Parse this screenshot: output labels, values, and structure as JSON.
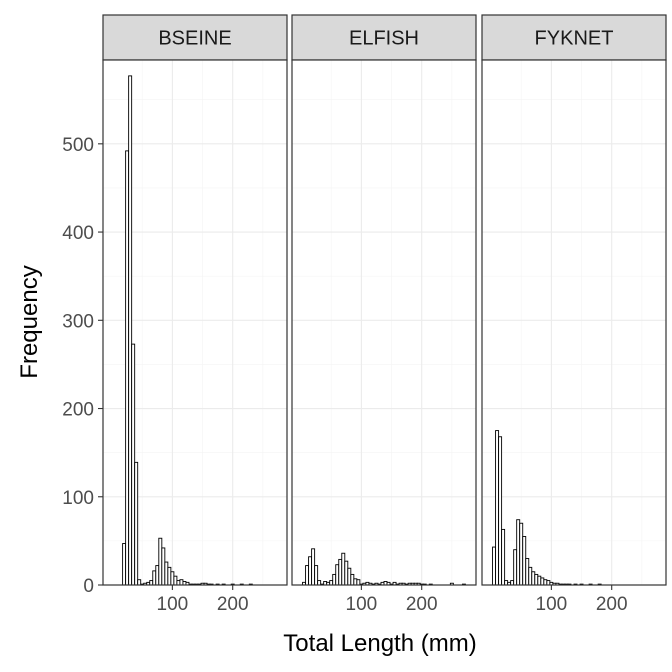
{
  "chart_data": {
    "type": "bar",
    "xlabel": "Total Length (mm)",
    "ylabel": "Frequency",
    "xlim": [
      -15,
      290
    ],
    "ylim": [
      0,
      595
    ],
    "x_ticks": [
      100,
      200
    ],
    "y_ticks": [
      0,
      100,
      200,
      300,
      400,
      500
    ],
    "bin_width": 5,
    "grid": true,
    "panels": [
      {
        "strip": "BSEINE",
        "bins": [
          {
            "x": 20,
            "y": 47
          },
          {
            "x": 25,
            "y": 492
          },
          {
            "x": 30,
            "y": 577
          },
          {
            "x": 35,
            "y": 273
          },
          {
            "x": 40,
            "y": 139
          },
          {
            "x": 45,
            "y": 6
          },
          {
            "x": 50,
            "y": 1
          },
          {
            "x": 55,
            "y": 2
          },
          {
            "x": 60,
            "y": 3
          },
          {
            "x": 65,
            "y": 5
          },
          {
            "x": 70,
            "y": 16
          },
          {
            "x": 75,
            "y": 22
          },
          {
            "x": 80,
            "y": 53
          },
          {
            "x": 85,
            "y": 42
          },
          {
            "x": 90,
            "y": 26
          },
          {
            "x": 95,
            "y": 20
          },
          {
            "x": 100,
            "y": 15
          },
          {
            "x": 105,
            "y": 10
          },
          {
            "x": 110,
            "y": 5
          },
          {
            "x": 115,
            "y": 6
          },
          {
            "x": 120,
            "y": 4
          },
          {
            "x": 125,
            "y": 3
          },
          {
            "x": 130,
            "y": 1
          },
          {
            "x": 135,
            "y": 1
          },
          {
            "x": 140,
            "y": 1
          },
          {
            "x": 145,
            "y": 1
          },
          {
            "x": 150,
            "y": 2
          },
          {
            "x": 155,
            "y": 2
          },
          {
            "x": 160,
            "y": 1
          },
          {
            "x": 165,
            "y": 1
          },
          {
            "x": 175,
            "y": 1
          },
          {
            "x": 185,
            "y": 1
          },
          {
            "x": 200,
            "y": 1
          },
          {
            "x": 215,
            "y": 1
          },
          {
            "x": 230,
            "y": 1
          }
        ]
      },
      {
        "strip": "ELFISH",
        "bins": [
          {
            "x": 5,
            "y": 3
          },
          {
            "x": 10,
            "y": 22
          },
          {
            "x": 15,
            "y": 32
          },
          {
            "x": 20,
            "y": 41
          },
          {
            "x": 25,
            "y": 22
          },
          {
            "x": 30,
            "y": 5
          },
          {
            "x": 35,
            "y": 1
          },
          {
            "x": 40,
            "y": 4
          },
          {
            "x": 45,
            "y": 3
          },
          {
            "x": 50,
            "y": 5
          },
          {
            "x": 55,
            "y": 12
          },
          {
            "x": 60,
            "y": 23
          },
          {
            "x": 65,
            "y": 29
          },
          {
            "x": 70,
            "y": 36
          },
          {
            "x": 75,
            "y": 27
          },
          {
            "x": 80,
            "y": 19
          },
          {
            "x": 85,
            "y": 12
          },
          {
            "x": 90,
            "y": 7
          },
          {
            "x": 95,
            "y": 6
          },
          {
            "x": 100,
            "y": 1
          },
          {
            "x": 105,
            "y": 2
          },
          {
            "x": 110,
            "y": 3
          },
          {
            "x": 115,
            "y": 2
          },
          {
            "x": 120,
            "y": 1
          },
          {
            "x": 125,
            "y": 2
          },
          {
            "x": 130,
            "y": 1
          },
          {
            "x": 135,
            "y": 3
          },
          {
            "x": 140,
            "y": 4
          },
          {
            "x": 145,
            "y": 3
          },
          {
            "x": 150,
            "y": 1
          },
          {
            "x": 155,
            "y": 3
          },
          {
            "x": 160,
            "y": 1
          },
          {
            "x": 165,
            "y": 2
          },
          {
            "x": 170,
            "y": 2
          },
          {
            "x": 175,
            "y": 1
          },
          {
            "x": 180,
            "y": 2
          },
          {
            "x": 185,
            "y": 2
          },
          {
            "x": 190,
            "y": 2
          },
          {
            "x": 195,
            "y": 2
          },
          {
            "x": 200,
            "y": 1
          },
          {
            "x": 205,
            "y": 1
          },
          {
            "x": 215,
            "y": 1
          },
          {
            "x": 250,
            "y": 2
          },
          {
            "x": 270,
            "y": 1
          }
        ]
      },
      {
        "strip": "FYKNET",
        "bins": [
          {
            "x": 5,
            "y": 43
          },
          {
            "x": 10,
            "y": 175
          },
          {
            "x": 15,
            "y": 168
          },
          {
            "x": 20,
            "y": 63
          },
          {
            "x": 25,
            "y": 5
          },
          {
            "x": 30,
            "y": 3
          },
          {
            "x": 35,
            "y": 5
          },
          {
            "x": 40,
            "y": 40
          },
          {
            "x": 45,
            "y": 74
          },
          {
            "x": 50,
            "y": 70
          },
          {
            "x": 55,
            "y": 55
          },
          {
            "x": 60,
            "y": 30
          },
          {
            "x": 65,
            "y": 20
          },
          {
            "x": 70,
            "y": 15
          },
          {
            "x": 75,
            "y": 12
          },
          {
            "x": 80,
            "y": 10
          },
          {
            "x": 85,
            "y": 8
          },
          {
            "x": 90,
            "y": 6
          },
          {
            "x": 95,
            "y": 5
          },
          {
            "x": 100,
            "y": 3
          },
          {
            "x": 105,
            "y": 2
          },
          {
            "x": 110,
            "y": 2
          },
          {
            "x": 115,
            "y": 1
          },
          {
            "x": 120,
            "y": 1
          },
          {
            "x": 125,
            "y": 1
          },
          {
            "x": 130,
            "y": 1
          },
          {
            "x": 140,
            "y": 1
          },
          {
            "x": 150,
            "y": 1
          },
          {
            "x": 165,
            "y": 1
          },
          {
            "x": 180,
            "y": 1
          }
        ]
      }
    ]
  }
}
